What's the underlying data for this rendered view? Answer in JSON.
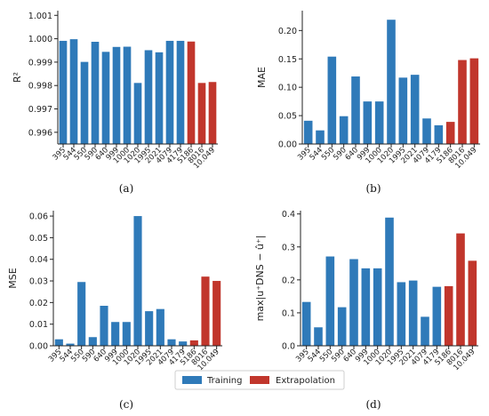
{
  "colors": {
    "training": "#2f7ab9",
    "extrapolation": "#c1362c"
  },
  "legend": {
    "placement": "bottom-center",
    "entries": [
      {
        "label": "Training",
        "color": "#2f7ab9"
      },
      {
        "label": "Extrapolation",
        "color": "#c1362c"
      }
    ]
  },
  "panels": [
    {
      "id": "a",
      "label": "(a)"
    },
    {
      "id": "b",
      "label": "(b)"
    },
    {
      "id": "c",
      "label": "(c)"
    },
    {
      "id": "d",
      "label": "(d)"
    }
  ],
  "chart_data": [
    {
      "panel": "(a)",
      "type": "bar",
      "categories": [
        "395",
        "544",
        "550",
        "590",
        "640",
        "999",
        "1000",
        "1020",
        "1995",
        "2021",
        "4079",
        "4179",
        "5186",
        "8016",
        "10.049"
      ],
      "values": [
        0.99991,
        0.99998,
        0.99901,
        0.99987,
        0.99944,
        0.99965,
        0.99966,
        0.99811,
        0.99951,
        0.99942,
        0.99991,
        0.99991,
        0.99988,
        0.99811,
        0.99815
      ],
      "groups": [
        "Training",
        "Training",
        "Training",
        "Training",
        "Training",
        "Training",
        "Training",
        "Training",
        "Training",
        "Training",
        "Training",
        "Training",
        "Extrapolation",
        "Extrapolation",
        "Extrapolation"
      ],
      "ylabel": "R²",
      "ylim": [
        0.9955,
        1.0012
      ],
      "yticks": [
        0.996,
        0.997,
        0.998,
        0.999,
        1.0,
        1.001
      ],
      "ytick_labels": [
        "0.996",
        "0.997",
        "0.998",
        "0.999",
        "1.000",
        "1.001"
      ],
      "grid": false
    },
    {
      "panel": "(b)",
      "type": "bar",
      "categories": [
        "395",
        "544",
        "550",
        "590",
        "640",
        "999",
        "1000",
        "1020",
        "1995",
        "2021",
        "4079",
        "4179",
        "5186",
        "8016",
        "10.049"
      ],
      "values": [
        0.041,
        0.024,
        0.154,
        0.049,
        0.119,
        0.075,
        0.075,
        0.219,
        0.117,
        0.122,
        0.045,
        0.033,
        0.039,
        0.148,
        0.151
      ],
      "groups": [
        "Training",
        "Training",
        "Training",
        "Training",
        "Training",
        "Training",
        "Training",
        "Training",
        "Training",
        "Training",
        "Training",
        "Training",
        "Extrapolation",
        "Extrapolation",
        "Extrapolation"
      ],
      "ylabel": "MAE",
      "ylim": [
        0,
        0.235
      ],
      "yticks": [
        0.0,
        0.05,
        0.1,
        0.15,
        0.2
      ],
      "ytick_labels": [
        "0.00",
        "0.05",
        "0.10",
        "0.15",
        "0.20"
      ],
      "grid": false
    },
    {
      "panel": "(c)",
      "type": "bar",
      "categories": [
        "395",
        "544",
        "550",
        "590",
        "640",
        "999",
        "1000",
        "1020",
        "1995",
        "2021",
        "4079",
        "4179",
        "5186",
        "8016",
        "10.049"
      ],
      "values": [
        0.003,
        0.001,
        0.0295,
        0.004,
        0.0185,
        0.011,
        0.011,
        0.06,
        0.016,
        0.017,
        0.003,
        0.002,
        0.0025,
        0.032,
        0.03
      ],
      "groups": [
        "Training",
        "Training",
        "Training",
        "Training",
        "Training",
        "Training",
        "Training",
        "Training",
        "Training",
        "Training",
        "Training",
        "Training",
        "Extrapolation",
        "Extrapolation",
        "Extrapolation"
      ],
      "ylabel": "MSE",
      "ylim": [
        0,
        0.0625
      ],
      "yticks": [
        0.0,
        0.01,
        0.02,
        0.03,
        0.04,
        0.05,
        0.06
      ],
      "ytick_labels": [
        "0.00",
        "0.01",
        "0.02",
        "0.03",
        "0.04",
        "0.05",
        "0.06"
      ],
      "grid": false
    },
    {
      "panel": "(d)",
      "type": "bar",
      "categories": [
        "395",
        "544",
        "550",
        "590",
        "640",
        "999",
        "1000",
        "1020",
        "1995",
        "2021",
        "4079",
        "4179",
        "5186",
        "8016",
        "10.049"
      ],
      "values": [
        0.133,
        0.056,
        0.271,
        0.117,
        0.263,
        0.235,
        0.235,
        0.389,
        0.193,
        0.198,
        0.088,
        0.179,
        0.181,
        0.341,
        0.258
      ],
      "groups": [
        "Training",
        "Training",
        "Training",
        "Training",
        "Training",
        "Training",
        "Training",
        "Training",
        "Training",
        "Training",
        "Training",
        "Training",
        "Extrapolation",
        "Extrapolation",
        "Extrapolation"
      ],
      "ylabel": "max|u⁺DNS − û⁺|",
      "ylim": [
        0,
        0.41
      ],
      "yticks": [
        0.0,
        0.1,
        0.2,
        0.3,
        0.4
      ],
      "ytick_labels": [
        "0.0",
        "0.1",
        "0.2",
        "0.3",
        "0.4"
      ],
      "grid": false
    }
  ]
}
